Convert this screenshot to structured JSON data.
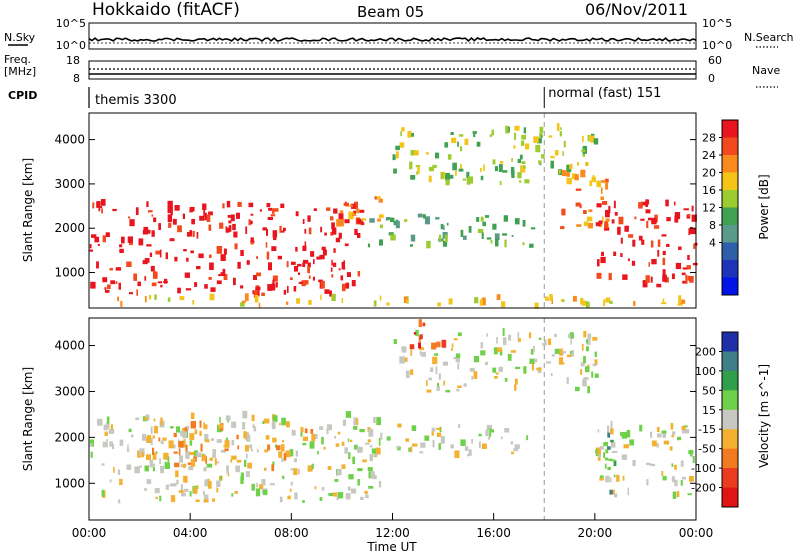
{
  "header": {
    "station": "Hokkaido (fitACF)",
    "beam": "Beam 05",
    "date": "06/Nov/2011"
  },
  "top_panel": {
    "nsky_label": "N.Sky",
    "nsearch_label": "N.Search",
    "noise_ticks_left": [
      "10^5",
      "10^0"
    ],
    "noise_ticks_right": [
      "10^5",
      "10^0"
    ],
    "freq_label_1": "Freq.",
    "freq_label_2": "[MHz]",
    "freq_ticks": [
      "18",
      "8"
    ],
    "nave_label": "Nave",
    "nave_ticks": [
      "60",
      "0"
    ],
    "cpid_label": "CPID",
    "cpid_segments": [
      {
        "start_hour": 0,
        "label": "themis 3300"
      },
      {
        "start_hour": 18,
        "label": "normal (fast) 151"
      }
    ]
  },
  "chart_data": [
    {
      "type": "heatmap",
      "name": "power",
      "ylabel": "Slant Range [km]",
      "xlim": [
        0,
        24
      ],
      "ylim": [
        200,
        4600
      ],
      "yticks": [
        1000,
        2000,
        3000,
        4000
      ],
      "colorbar": {
        "label": "Power [dB]",
        "ticks": [
          "28",
          "24",
          "20",
          "16",
          "12",
          "8",
          "4"
        ],
        "colors": [
          "#e8141e",
          "#f24a1e",
          "#fb8a1e",
          "#f4c518",
          "#9ccc30",
          "#3fa152",
          "#5a9a8a",
          "#2f5fa8",
          "#1f33b8",
          "#0014e6"
        ]
      },
      "regions": [
        {
          "x_start": 0.0,
          "x_end": 10.8,
          "range_min": 500,
          "range_max": 2600,
          "level": "28"
        },
        {
          "x_start": 9.5,
          "x_end": 11.5,
          "range_min": 2100,
          "range_max": 2800,
          "level": "20"
        },
        {
          "x_start": 11.0,
          "x_end": 17.5,
          "range_min": 1600,
          "range_max": 2300,
          "level": "8"
        },
        {
          "x_start": 12.0,
          "x_end": 20.0,
          "range_min": 3000,
          "range_max": 4300,
          "level": "12"
        },
        {
          "x_start": 18.5,
          "x_end": 20.5,
          "range_min": 2000,
          "range_max": 3300,
          "level": "20"
        },
        {
          "x_start": 20.0,
          "x_end": 24.0,
          "range_min": 700,
          "range_max": 2600,
          "level": "28"
        },
        {
          "x_start": 0.0,
          "x_end": 24.0,
          "range_min": 250,
          "range_max": 450,
          "level": "16"
        }
      ]
    },
    {
      "type": "heatmap",
      "name": "velocity",
      "xlabel": "Time UT",
      "ylabel": "Slant Range [km]",
      "xlim": [
        0,
        24
      ],
      "ylim": [
        200,
        4600
      ],
      "xticks": [
        "00:00",
        "04:00",
        "08:00",
        "12:00",
        "16:00",
        "20:00",
        "00:00"
      ],
      "yticks": [
        1000,
        2000,
        3000,
        4000
      ],
      "colorbar": {
        "label": "Velocity [m s^-1]",
        "ticks": [
          "200",
          "100",
          "50",
          "15",
          "-15",
          "-50",
          "-100",
          "-200"
        ],
        "colors": [
          "#1f2fa8",
          "#3f7f8a",
          "#2f9f4a",
          "#6fd04a",
          "#c8c8c2",
          "#f4b030",
          "#f27a20",
          "#ea3b1e",
          "#e01414"
        ]
      },
      "regions": [
        {
          "x_start": 0.0,
          "x_end": 11.5,
          "range_min": 600,
          "range_max": 2500,
          "level": "-15"
        },
        {
          "x_start": 11.0,
          "x_end": 17.5,
          "range_min": 1600,
          "range_max": 2300,
          "level": "-15"
        },
        {
          "x_start": 12.0,
          "x_end": 20.0,
          "range_min": 3000,
          "range_max": 4300,
          "level": "-15"
        },
        {
          "x_start": 20.0,
          "x_end": 24.0,
          "range_min": 700,
          "range_max": 2300,
          "level": "-15"
        },
        {
          "x_start": 12.5,
          "x_end": 14.0,
          "range_min": 3900,
          "range_max": 4500,
          "level": "-200"
        },
        {
          "x_start": 20.3,
          "x_end": 21.0,
          "range_min": 800,
          "range_max": 2100,
          "level": "50"
        },
        {
          "x_start": 2.0,
          "x_end": 9.0,
          "range_min": 1300,
          "range_max": 2300,
          "level": "-50"
        }
      ]
    }
  ]
}
